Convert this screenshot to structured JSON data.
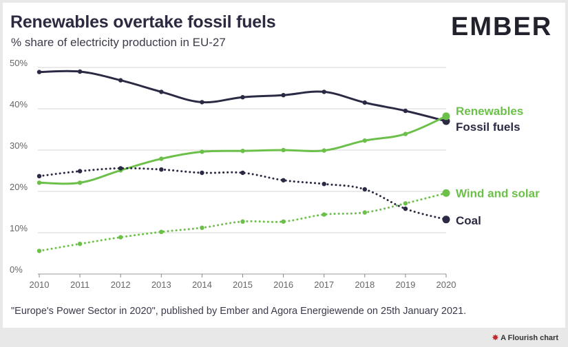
{
  "header": {
    "title": "Renewables overtake fossil fuels",
    "subtitle": "% share of electricity production in EU-27",
    "logo_text": "EMBER"
  },
  "footer": {
    "source": "\"Europe's Power Sector in 2020\", published by Ember and Agora Energiewende on 25th January 2021.",
    "flourish": "A Flourish chart",
    "flourish_icon": "flourish-star-icon"
  },
  "colors": {
    "renewables": "#6cc04a",
    "fossil": "#2b2a44",
    "grid": "#d6d6d6",
    "axis": "#888888"
  },
  "chart_data": {
    "type": "line",
    "title": "Renewables overtake fossil fuels",
    "subtitle": "% share of electricity production in EU-27",
    "x": [
      2010,
      2011,
      2012,
      2013,
      2014,
      2015,
      2016,
      2017,
      2018,
      2019,
      2020
    ],
    "x_tick_labels": [
      "2010",
      "2011",
      "2012",
      "2013",
      "2014",
      "2015",
      "2016",
      "2017",
      "2018",
      "2019",
      "2020"
    ],
    "y_tick_labels": [
      "0%",
      "10%",
      "20%",
      "30%",
      "40%",
      "50%"
    ],
    "y_ticks": [
      0,
      10,
      20,
      30,
      40,
      50
    ],
    "ylim": [
      0,
      50
    ],
    "xlabel": "",
    "ylabel": "",
    "series": [
      {
        "name": "Fossil fuels",
        "style": "solid",
        "color": "#2b2a44",
        "values": [
          48.9,
          49.0,
          46.9,
          44.1,
          41.6,
          42.8,
          43.3,
          44.1,
          41.5,
          39.5,
          37.0
        ]
      },
      {
        "name": "Renewables",
        "style": "solid",
        "color": "#6cc04a",
        "values": [
          22.1,
          22.1,
          25.1,
          27.9,
          29.6,
          29.8,
          30.0,
          29.9,
          32.3,
          33.9,
          38.2
        ]
      },
      {
        "name": "Coal",
        "style": "dotted",
        "color": "#2b2a44",
        "values": [
          23.7,
          24.9,
          25.6,
          25.3,
          24.5,
          24.5,
          22.7,
          21.8,
          20.5,
          15.8,
          13.2
        ]
      },
      {
        "name": "Wind and solar",
        "style": "dotted",
        "color": "#6cc04a",
        "values": [
          5.6,
          7.3,
          8.9,
          10.2,
          11.2,
          12.7,
          12.7,
          14.4,
          14.9,
          17.1,
          19.6
        ]
      }
    ]
  }
}
